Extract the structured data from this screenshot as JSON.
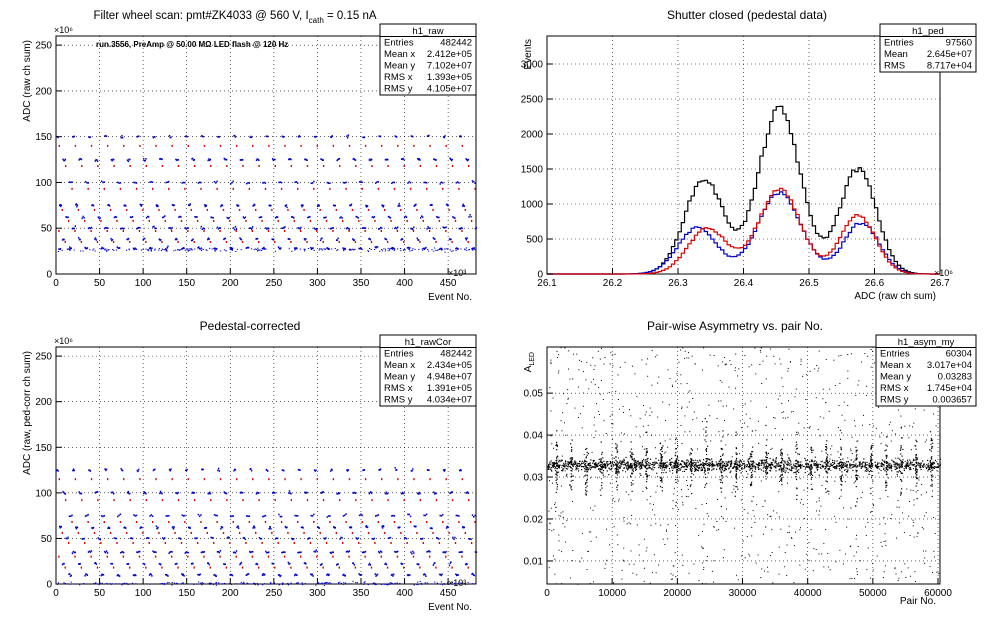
{
  "chart_data": [
    {
      "type": "scatter",
      "title_main": "Filter wheel scan: pmt#ZK4033 @   560 V, I",
      "title_sub": "cath",
      "title_tail": " = 0.15 nA",
      "annotation": "run.3556, PreAmp @ 50.00 MΩ LED flash @  120 Hz",
      "xlabel": "Event No.",
      "ylabel": "ADC (raw ch sum)",
      "x_exponent": "×10³",
      "y_exponent": "×10⁶",
      "xlim": [
        0,
        482
      ],
      "ylim": [
        0,
        260
      ],
      "xticks": [
        0,
        50,
        100,
        150,
        200,
        250,
        300,
        350,
        400,
        450
      ],
      "yticks": [
        0,
        50,
        100,
        150,
        200,
        250
      ],
      "colors": [
        "#0000cc",
        "#dd0000"
      ],
      "stats": {
        "name": "h1_raw",
        "rows": [
          [
            "Entries",
            "482442"
          ],
          [
            "Mean x",
            "2.412e+05"
          ],
          [
            "Mean y",
            "7.102e+07"
          ],
          [
            "RMS x",
            "1.393e+05"
          ],
          [
            "RMS y",
            "4.105e+07"
          ]
        ]
      },
      "levels_blue": [
        150,
        125,
        100,
        75,
        62,
        50,
        38,
        28
      ],
      "levels_red": [
        140,
        118,
        93,
        70,
        58,
        47,
        35
      ],
      "baseline": 27,
      "period": 18.5
    },
    {
      "type": "histogram",
      "title": "Shutter closed (pedestal data)",
      "xlabel": "ADC (raw ch sum)",
      "ylabel": "Events",
      "x_exponent": "×10⁶",
      "xlim": [
        26.1,
        26.7
      ],
      "ylim": [
        0,
        3400
      ],
      "xticks": [
        26.1,
        26.2,
        26.3,
        26.4,
        26.5,
        26.6,
        26.7
      ],
      "xtick_labels": [
        "26.1",
        "26.2",
        "26.3",
        "26.4",
        "26.5",
        "26.6",
        "26.7"
      ],
      "yticks": [
        0,
        500,
        1000,
        1500,
        2000,
        2500,
        3000
      ],
      "stats": {
        "name": "h1_ped",
        "rows": [
          [
            "Entries",
            "97560"
          ],
          [
            "Mean",
            "2.645e+07"
          ],
          [
            "RMS",
            "8.717e+04"
          ]
        ]
      },
      "series": [
        {
          "color": "#000000",
          "peaks": [
            {
              "mu": 26.455,
              "sigma": 0.032,
              "amp": 2350
            },
            {
              "mu": 26.34,
              "sigma": 0.03,
              "amp": 1350
            },
            {
              "mu": 26.575,
              "sigma": 0.028,
              "amp": 1500
            }
          ]
        },
        {
          "color": "#0000cc",
          "peaks": [
            {
              "mu": 26.455,
              "sigma": 0.033,
              "amp": 1150
            },
            {
              "mu": 26.33,
              "sigma": 0.03,
              "amp": 660
            },
            {
              "mu": 26.58,
              "sigma": 0.027,
              "amp": 730
            }
          ]
        },
        {
          "color": "#dd0000",
          "peaks": [
            {
              "mu": 26.455,
              "sigma": 0.032,
              "amp": 1200
            },
            {
              "mu": 26.345,
              "sigma": 0.03,
              "amp": 650
            },
            {
              "mu": 26.575,
              "sigma": 0.027,
              "amp": 830
            }
          ]
        }
      ]
    },
    {
      "type": "scatter",
      "title": "Pedestal-corrected",
      "xlabel": "Event No.",
      "ylabel": "ADC (raw, ped-corr ch sum)",
      "x_exponent": "×10³",
      "y_exponent": "×10⁶",
      "xlim": [
        0,
        482
      ],
      "ylim": [
        0,
        260
      ],
      "xticks": [
        0,
        50,
        100,
        150,
        200,
        250,
        300,
        350,
        400,
        450
      ],
      "yticks": [
        0,
        50,
        100,
        150,
        200,
        250
      ],
      "colors": [
        "#0000cc",
        "#dd0000"
      ],
      "stats": {
        "name": "h1_rawCor",
        "rows": [
          [
            "Entries",
            "482442"
          ],
          [
            "Mean x",
            "2.434e+05"
          ],
          [
            "Mean y",
            "4.948e+07"
          ],
          [
            "RMS x",
            "1.391e+05"
          ],
          [
            "RMS y",
            "4.034e+07"
          ]
        ]
      },
      "levels_blue": [
        125,
        100,
        75,
        62,
        50,
        35,
        22,
        10
      ],
      "levels_red": [
        115,
        92,
        68,
        56,
        45,
        30,
        18
      ],
      "baseline": 1,
      "period": 18.5
    },
    {
      "type": "scatter",
      "title": "Pair-wise Asymmetry vs. pair No.",
      "xlabel": "Pair No.",
      "ylabel": "A",
      "ylabel_sub": "LED",
      "xlim": [
        0,
        60304
      ],
      "ylim": [
        0.0045,
        0.061
      ],
      "xticks": [
        0,
        10000,
        20000,
        30000,
        40000,
        50000,
        60000
      ],
      "yticks": [
        0.01,
        0.02,
        0.03,
        0.04,
        0.05
      ],
      "ytick_labels": [
        "0.01",
        "0.02",
        "0.03",
        "0.04",
        "0.05"
      ],
      "stats": {
        "name": "h1_asym_my",
        "rows": [
          [
            "Entries",
            "60304"
          ],
          [
            "Mean x",
            "3.017e+04"
          ],
          [
            "Mean y",
            "0.03283"
          ],
          [
            "RMS x",
            "1.745e+04"
          ],
          [
            "RMS y",
            "0.003657"
          ]
        ]
      },
      "band_center": 0.0329,
      "spike_period": 2300
    }
  ]
}
